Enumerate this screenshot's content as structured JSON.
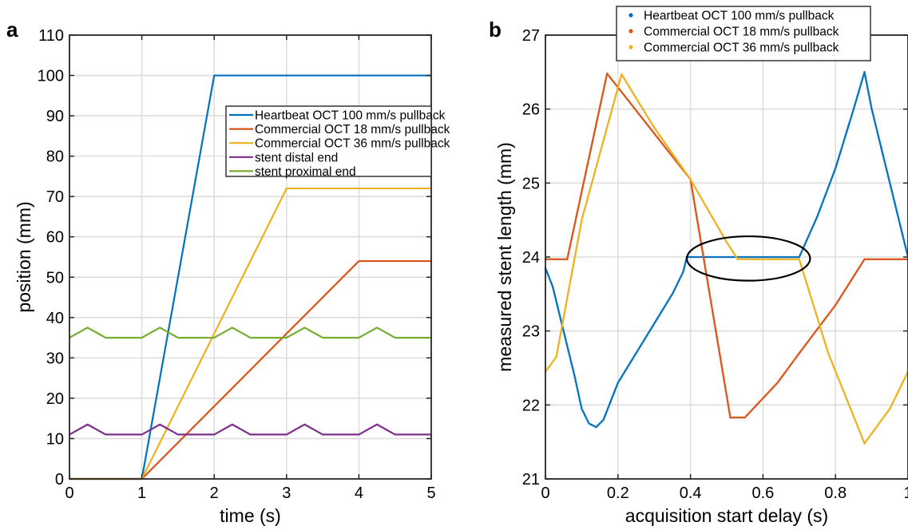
{
  "panel_a_letter": "a",
  "panel_b_letter": "b",
  "chart_data": [
    {
      "type": "line",
      "panel": "a",
      "xlabel": "time (s)",
      "ylabel": "position (mm)",
      "xlim": [
        0,
        5
      ],
      "ylim": [
        0,
        110
      ],
      "xticks": [
        0,
        1,
        2,
        3,
        4,
        5
      ],
      "yticks": [
        0,
        10,
        20,
        30,
        40,
        50,
        60,
        70,
        80,
        90,
        100,
        110
      ],
      "grid": true,
      "legend_position": "top-right",
      "series": [
        {
          "name": "Heartbeat OCT 100 mm/s pullback",
          "color": "#0072BD",
          "x": [
            0,
            1,
            2,
            5
          ],
          "y": [
            0,
            0,
            100,
            100
          ]
        },
        {
          "name": "Commercial OCT 18 mm/s pullback",
          "color": "#D95319",
          "x": [
            0,
            1,
            4,
            5
          ],
          "y": [
            0,
            0,
            54,
            54
          ]
        },
        {
          "name": "Commercial OCT 36 mm/s pullback",
          "color": "#EDB120",
          "x": [
            0,
            1,
            3,
            5
          ],
          "y": [
            0,
            0,
            72,
            72
          ]
        },
        {
          "name": "stent distal end",
          "color": "#7E2F8E",
          "x": [
            0,
            0.25,
            0.5,
            1,
            1.25,
            1.5,
            2,
            2.25,
            2.5,
            3,
            3.25,
            3.5,
            4,
            4.25,
            4.5,
            5
          ],
          "y": [
            11,
            13.5,
            11,
            11,
            13.5,
            11,
            11,
            13.5,
            11,
            11,
            13.5,
            11,
            11,
            13.5,
            11,
            11
          ]
        },
        {
          "name": "stent proximal end",
          "color": "#77AC30",
          "x": [
            0,
            0.25,
            0.5,
            1,
            1.25,
            1.5,
            2,
            2.25,
            2.5,
            3,
            3.25,
            3.5,
            4,
            4.25,
            4.5,
            5
          ],
          "y": [
            35,
            37.5,
            35,
            35,
            37.5,
            35,
            35,
            37.5,
            35,
            35,
            37.5,
            35,
            35,
            37.5,
            35,
            35
          ]
        }
      ]
    },
    {
      "type": "scatter",
      "panel": "b",
      "xlabel": "acquisition start delay (s)",
      "ylabel": "measured stent length (mm)",
      "xlim": [
        0,
        1
      ],
      "ylim": [
        21,
        27
      ],
      "xticks": [
        0,
        0.2,
        0.4,
        0.6,
        0.8,
        1
      ],
      "yticks": [
        21,
        22,
        23,
        24,
        25,
        26,
        27
      ],
      "grid": true,
      "legend_position": "top",
      "annotation": "ellipse highlighting flat 24 mm segment",
      "series": [
        {
          "name": "Heartbeat OCT 100 mm/s pullback",
          "color": "#0072BD",
          "x": [
            0,
            0.02,
            0.05,
            0.08,
            0.1,
            0.12,
            0.14,
            0.16,
            0.2,
            0.25,
            0.3,
            0.35,
            0.38,
            0.39,
            0.45,
            0.5,
            0.55,
            0.6,
            0.65,
            0.7,
            0.75,
            0.8,
            0.85,
            0.88,
            0.9,
            0.95,
            1
          ],
          "y": [
            23.85,
            23.6,
            23.0,
            22.4,
            21.95,
            21.75,
            21.7,
            21.8,
            22.3,
            22.7,
            23.1,
            23.5,
            23.8,
            24.0,
            24.0,
            24.0,
            24.0,
            24.0,
            24.0,
            24.0,
            24.55,
            25.2,
            26.0,
            26.5,
            26.0,
            25.0,
            24.0
          ]
        },
        {
          "name": "Commercial OCT 18 mm/s pullback",
          "color": "#D95319",
          "x": [
            0,
            0.06,
            0.17,
            0.4,
            0.51,
            0.55,
            0.64,
            0.7,
            0.8,
            0.88,
            1
          ],
          "y": [
            23.97,
            23.97,
            26.48,
            25.05,
            21.83,
            21.83,
            22.3,
            22.7,
            23.35,
            23.97,
            23.97
          ]
        },
        {
          "name": "Commercial OCT 36 mm/s pullback",
          "color": "#EDB120",
          "x": [
            0,
            0.03,
            0.1,
            0.21,
            0.3,
            0.4,
            0.5,
            0.53,
            0.6,
            0.7,
            0.78,
            0.88,
            0.95,
            1
          ],
          "y": [
            22.45,
            22.65,
            24.5,
            26.47,
            25.75,
            25.05,
            24.2,
            23.97,
            23.97,
            23.97,
            22.7,
            21.48,
            21.95,
            22.45
          ]
        }
      ]
    }
  ]
}
